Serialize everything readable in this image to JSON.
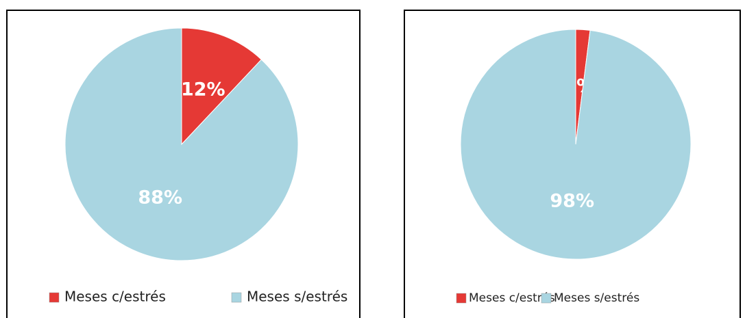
{
  "chart_data": [
    {
      "type": "pie",
      "categories": [
        "Meses c/estrés",
        "Meses s/estrés"
      ],
      "values": [
        12,
        88
      ],
      "value_labels": [
        "12%",
        "88%"
      ],
      "colors": [
        "#e53935",
        "#a9d5e1"
      ],
      "legend": "bottom"
    },
    {
      "type": "pie",
      "categories": [
        "Meses c/estrés",
        "Meses s/estrés"
      ],
      "values": [
        2,
        98
      ],
      "value_labels": [
        "2%",
        "98%"
      ],
      "colors": [
        "#e53935",
        "#a9d5e1"
      ],
      "legend": "bottom"
    }
  ]
}
